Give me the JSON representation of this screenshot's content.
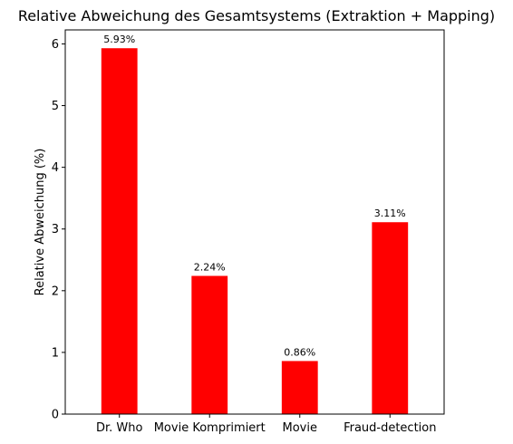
{
  "chart_data": {
    "type": "bar",
    "title": "Relative Abweichung des Gesamtsystems (Extraktion + Mapping)",
    "xlabel": "",
    "ylabel": "Relative Abweichung (%)",
    "categories": [
      "Dr. Who",
      "Movie Komprimiert",
      "Movie",
      "Fraud-detection"
    ],
    "values": [
      5.93,
      2.24,
      0.86,
      3.11
    ],
    "data_labels": [
      "5.93%",
      "2.24%",
      "0.86%",
      "3.11%"
    ],
    "ylim": [
      0,
      6.227
    ],
    "yticks": [
      0,
      1,
      2,
      3,
      4,
      5,
      6
    ],
    "bar_color": "#ff0000",
    "grid": false
  }
}
